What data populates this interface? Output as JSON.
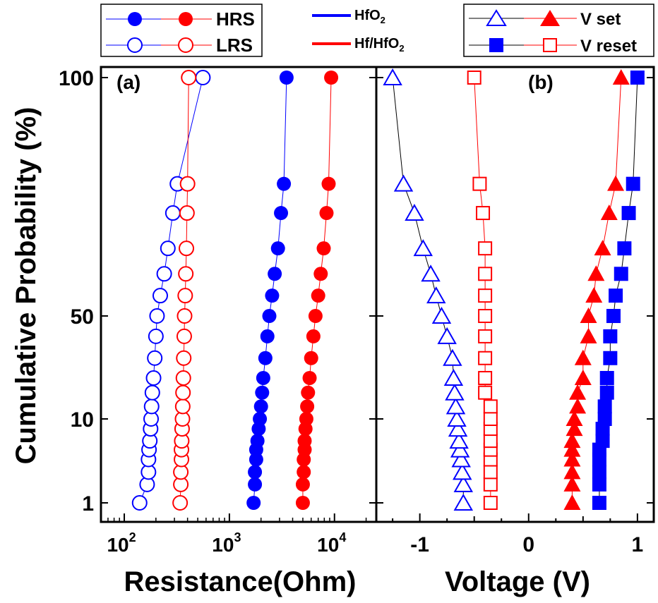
{
  "colors": {
    "blue": "#0000ff",
    "red": "#ff0000",
    "black": "#000000"
  },
  "shared_y_axis": {
    "label": "Cumulative Probability (%)",
    "scale": "probability",
    "ticks": [
      1,
      10,
      50,
      100
    ],
    "tick_labels": [
      "1",
      "10",
      "50",
      "100"
    ]
  },
  "legends": {
    "states": [
      {
        "label": "HRS",
        "marker": "filled-circle"
      },
      {
        "label": "LRS",
        "marker": "open-circle"
      }
    ],
    "materials": [
      {
        "label_main": "HfO",
        "label_sub": "2",
        "color": "#0000ff"
      },
      {
        "label_main": "Hf/HfO",
        "label_sub": "2",
        "color": "#ff0000"
      }
    ],
    "voltages": [
      {
        "label": "V set",
        "marker_hfo2": "open-triangle",
        "marker_hf": "filled-triangle"
      },
      {
        "label": "V reset",
        "marker_hfo2": "filled-square",
        "marker_hf": "open-square"
      }
    ]
  },
  "chart_data": [
    {
      "type": "scatter",
      "panel_label": "(a)",
      "xlabel": "Resistance(Ohm)",
      "xscale": "log",
      "xlim": [
        60,
        25000
      ],
      "x_ticks": [
        100,
        1000,
        10000
      ],
      "x_tick_labels": [
        {
          "base": "10",
          "exp": "2"
        },
        {
          "base": "10",
          "exp": "3"
        },
        {
          "base": "10",
          "exp": "4"
        }
      ],
      "ylabel": "Cumulative Probability (%)",
      "ylim": [
        0.8,
        100
      ],
      "series": [
        {
          "name": "HRS HfO2",
          "color": "#0000ff",
          "marker": "filled-circle",
          "points": [
            [
              1700,
              1
            ],
            [
              1750,
              1.8
            ],
            [
              1750,
              2.6
            ],
            [
              1800,
              3.7
            ],
            [
              1800,
              4.8
            ],
            [
              1850,
              6
            ],
            [
              1900,
              8
            ],
            [
              1950,
              10
            ],
            [
              2000,
              13
            ],
            [
              2050,
              17
            ],
            [
              2100,
              22
            ],
            [
              2200,
              30
            ],
            [
              2300,
              40
            ],
            [
              2400,
              50
            ],
            [
              2550,
              60
            ],
            [
              2700,
              70
            ],
            [
              2900,
              80
            ],
            [
              3100,
              90
            ],
            [
              3300,
              95
            ],
            [
              3500,
              100
            ]
          ]
        },
        {
          "name": "HRS Hf/HfO2",
          "color": "#ff0000",
          "marker": "filled-circle",
          "points": [
            [
              5000,
              1
            ],
            [
              5000,
              1.8
            ],
            [
              5100,
              2.6
            ],
            [
              5100,
              3.7
            ],
            [
              5200,
              4.8
            ],
            [
              5200,
              6
            ],
            [
              5300,
              8
            ],
            [
              5400,
              10
            ],
            [
              5500,
              13
            ],
            [
              5600,
              17
            ],
            [
              5800,
              22
            ],
            [
              6000,
              30
            ],
            [
              6300,
              40
            ],
            [
              6600,
              50
            ],
            [
              7000,
              60
            ],
            [
              7400,
              70
            ],
            [
              7900,
              80
            ],
            [
              8400,
              90
            ],
            [
              8800,
              95
            ],
            [
              9300,
              100
            ]
          ]
        },
        {
          "name": "LRS HfO2",
          "color": "#0000ff",
          "marker": "open-circle",
          "points": [
            [
              140,
              1
            ],
            [
              165,
              1.8
            ],
            [
              170,
              2.6
            ],
            [
              170,
              3.7
            ],
            [
              172,
              4.8
            ],
            [
              175,
              6
            ],
            [
              178,
              8
            ],
            [
              180,
              10
            ],
            [
              182,
              13
            ],
            [
              185,
              17
            ],
            [
              190,
              22
            ],
            [
              195,
              30
            ],
            [
              200,
              40
            ],
            [
              205,
              50
            ],
            [
              220,
              60
            ],
            [
              240,
              70
            ],
            [
              260,
              80
            ],
            [
              290,
              90
            ],
            [
              320,
              95
            ],
            [
              560,
              100
            ]
          ]
        },
        {
          "name": "LRS Hf/HfO2",
          "color": "#ff0000",
          "marker": "open-circle",
          "points": [
            [
              340,
              1
            ],
            [
              345,
              1.8
            ],
            [
              345,
              2.6
            ],
            [
              350,
              3.7
            ],
            [
              350,
              4.8
            ],
            [
              352,
              6
            ],
            [
              355,
              8
            ],
            [
              358,
              10
            ],
            [
              360,
              13
            ],
            [
              362,
              17
            ],
            [
              365,
              22
            ],
            [
              368,
              30
            ],
            [
              372,
              40
            ],
            [
              375,
              50
            ],
            [
              380,
              60
            ],
            [
              385,
              70
            ],
            [
              390,
              80
            ],
            [
              395,
              90
            ],
            [
              400,
              95
            ],
            [
              410,
              100
            ]
          ]
        }
      ]
    },
    {
      "type": "scatter",
      "panel_label": "(b)",
      "xlabel": "Voltage (V)",
      "xscale": "linear",
      "xlim": [
        -1.4,
        1.15
      ],
      "x_ticks": [
        -1,
        0,
        1
      ],
      "x_tick_labels": [
        "-1",
        "0",
        "1"
      ],
      "ylim": [
        0.8,
        100
      ],
      "series": [
        {
          "name": "V set HfO2",
          "color": "#0000ff",
          "marker": "open-triangle",
          "points": [
            [
              -0.6,
              1
            ],
            [
              -0.6,
              1.8
            ],
            [
              -0.61,
              2.6
            ],
            [
              -0.62,
              3.7
            ],
            [
              -0.63,
              4.8
            ],
            [
              -0.64,
              6
            ],
            [
              -0.65,
              8
            ],
            [
              -0.66,
              10
            ],
            [
              -0.67,
              13
            ],
            [
              -0.68,
              17
            ],
            [
              -0.69,
              22
            ],
            [
              -0.7,
              30
            ],
            [
              -0.75,
              40
            ],
            [
              -0.8,
              50
            ],
            [
              -0.85,
              60
            ],
            [
              -0.9,
              70
            ],
            [
              -0.97,
              80
            ],
            [
              -1.05,
              90
            ],
            [
              -1.15,
              95
            ],
            [
              -1.25,
              100
            ]
          ]
        },
        {
          "name": "V set Hf/HfO2",
          "color": "#ff0000",
          "marker": "filled-triangle",
          "points": [
            [
              0.4,
              1
            ],
            [
              0.4,
              1.8
            ],
            [
              0.4,
              2.6
            ],
            [
              0.4,
              3.7
            ],
            [
              0.4,
              4.8
            ],
            [
              0.4,
              6
            ],
            [
              0.42,
              8
            ],
            [
              0.42,
              10
            ],
            [
              0.45,
              13
            ],
            [
              0.45,
              17
            ],
            [
              0.5,
              22
            ],
            [
              0.5,
              30
            ],
            [
              0.55,
              40
            ],
            [
              0.55,
              50
            ],
            [
              0.6,
              60
            ],
            [
              0.62,
              70
            ],
            [
              0.68,
              80
            ],
            [
              0.74,
              90
            ],
            [
              0.8,
              95
            ],
            [
              0.85,
              100
            ]
          ]
        },
        {
          "name": "V reset HfO2",
          "color": "#0000ff",
          "marker": "filled-square",
          "points": [
            [
              0.65,
              1
            ],
            [
              0.65,
              1.8
            ],
            [
              0.65,
              2.6
            ],
            [
              0.65,
              3.7
            ],
            [
              0.65,
              4.8
            ],
            [
              0.68,
              6
            ],
            [
              0.68,
              8
            ],
            [
              0.7,
              10
            ],
            [
              0.7,
              13
            ],
            [
              0.72,
              17
            ],
            [
              0.72,
              22
            ],
            [
              0.75,
              30
            ],
            [
              0.75,
              40
            ],
            [
              0.78,
              50
            ],
            [
              0.8,
              60
            ],
            [
              0.85,
              70
            ],
            [
              0.88,
              80
            ],
            [
              0.92,
              90
            ],
            [
              0.96,
              95
            ],
            [
              1.0,
              100
            ]
          ]
        },
        {
          "name": "V reset Hf/HfO2",
          "color": "#ff0000",
          "marker": "open-square",
          "points": [
            [
              -0.35,
              1
            ],
            [
              -0.35,
              1.8
            ],
            [
              -0.35,
              2.6
            ],
            [
              -0.35,
              3.7
            ],
            [
              -0.35,
              4.8
            ],
            [
              -0.35,
              6
            ],
            [
              -0.35,
              8
            ],
            [
              -0.35,
              10
            ],
            [
              -0.35,
              13
            ],
            [
              -0.4,
              17
            ],
            [
              -0.4,
              22
            ],
            [
              -0.4,
              30
            ],
            [
              -0.4,
              40
            ],
            [
              -0.4,
              50
            ],
            [
              -0.4,
              60
            ],
            [
              -0.4,
              70
            ],
            [
              -0.4,
              80
            ],
            [
              -0.42,
              90
            ],
            [
              -0.45,
              95
            ],
            [
              -0.5,
              100
            ]
          ]
        }
      ]
    }
  ]
}
